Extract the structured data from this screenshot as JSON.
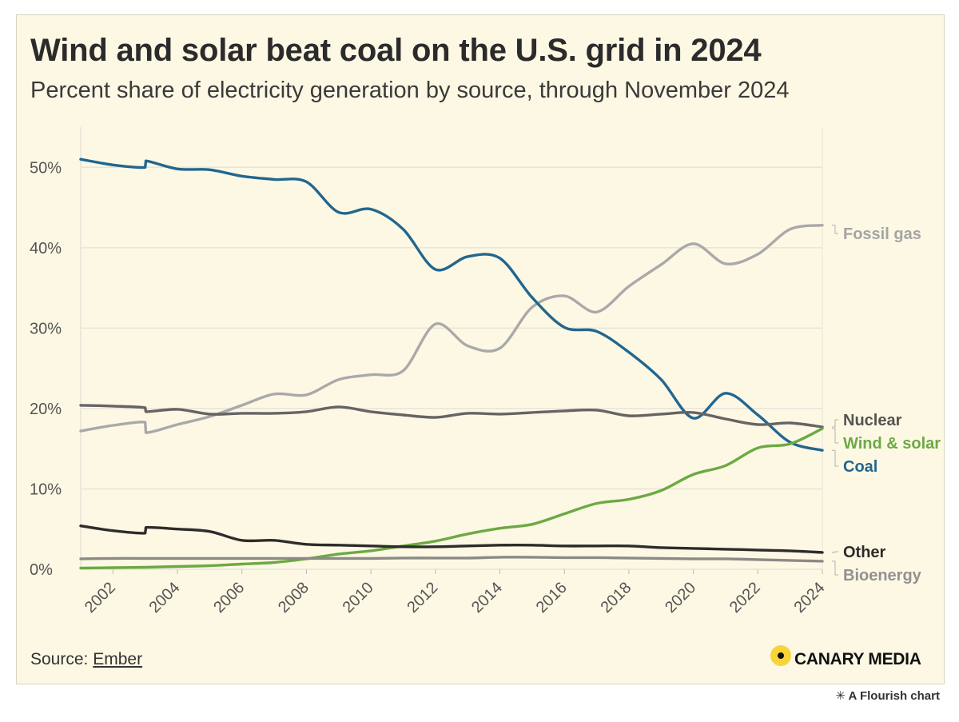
{
  "header": {
    "title": "Wind and solar beat coal on the U.S. grid in 2024",
    "subtitle": "Percent share of electricity generation by source, through November 2024"
  },
  "footer": {
    "source_prefix": "Source: ",
    "source_link": "Ember",
    "brand": "CANARY MEDIA",
    "flourish_icon": "✳",
    "flourish": "A Flourish chart"
  },
  "colors": {
    "background": "#fcf8e4",
    "grid": "#e7e4d9",
    "axis_text": "#555555"
  },
  "chart_data": {
    "type": "line",
    "title": "Wind and solar beat coal on the U.S. grid in 2024",
    "subtitle": "Percent share of electricity generation by source, through November 2024",
    "xlabel": "",
    "ylabel": "",
    "x_range": [
      2001,
      2024
    ],
    "ylim": [
      0,
      55
    ],
    "y_ticks": [
      0,
      10,
      20,
      30,
      40,
      50
    ],
    "y_tick_labels": [
      "0%",
      "10%",
      "20%",
      "30%",
      "40%",
      "50%"
    ],
    "x_ticks": [
      2002,
      2004,
      2006,
      2008,
      2010,
      2012,
      2014,
      2016,
      2018,
      2020,
      2022,
      2024
    ],
    "x_tick_labels": [
      "2002",
      "2004",
      "2006",
      "2008",
      "2010",
      "2012",
      "2014",
      "2016",
      "2018",
      "2020",
      "2022",
      "2024"
    ],
    "grid": true,
    "legend": "direct labels at right end of lines",
    "x": [
      2001,
      2002,
      2003,
      2003.02,
      2004,
      2005,
      2006,
      2007,
      2008,
      2009,
      2010,
      2011,
      2012,
      2013,
      2014,
      2015,
      2016,
      2017,
      2018,
      2019,
      2020,
      2021,
      2022,
      2023,
      2024
    ],
    "series": [
      {
        "name": "Fossil gas",
        "label": "Fossil gas",
        "color": "#a9a9a9",
        "values": [
          17.2,
          17.9,
          18.3,
          17.0,
          18.0,
          19.0,
          20.4,
          21.8,
          21.7,
          23.6,
          24.2,
          24.7,
          30.5,
          27.8,
          27.5,
          32.6,
          34.0,
          32.0,
          35.2,
          37.9,
          40.5,
          38.0,
          39.2,
          42.3,
          42.8
        ]
      },
      {
        "name": "Coal",
        "label": "Coal",
        "color": "#22668f",
        "values": [
          51.0,
          50.3,
          50.0,
          50.8,
          49.8,
          49.7,
          48.9,
          48.5,
          48.2,
          44.4,
          44.8,
          42.3,
          37.3,
          38.9,
          38.7,
          33.8,
          30.1,
          29.6,
          27.0,
          23.6,
          18.8,
          21.9,
          19.2,
          15.8,
          14.8
        ]
      },
      {
        "name": "Nuclear",
        "label": "Nuclear",
        "color": "#666463",
        "values": [
          20.4,
          20.3,
          20.1,
          19.6,
          19.9,
          19.3,
          19.4,
          19.4,
          19.6,
          20.2,
          19.6,
          19.2,
          18.9,
          19.4,
          19.3,
          19.5,
          19.7,
          19.8,
          19.1,
          19.3,
          19.5,
          18.7,
          18.0,
          18.2,
          17.7
        ]
      },
      {
        "name": "Wind & solar",
        "label": "Wind & solar",
        "color": "#6ca944",
        "values": [
          0.15,
          0.2,
          0.25,
          0.25,
          0.35,
          0.45,
          0.65,
          0.85,
          1.3,
          1.9,
          2.3,
          2.9,
          3.5,
          4.4,
          5.1,
          5.6,
          6.9,
          8.2,
          8.7,
          9.8,
          11.8,
          12.9,
          15.1,
          15.6,
          17.5
        ]
      },
      {
        "name": "Other",
        "label": "Other",
        "color": "#2d2c2a",
        "values": [
          5.4,
          4.8,
          4.5,
          5.2,
          5.0,
          4.7,
          3.6,
          3.6,
          3.1,
          3.0,
          2.9,
          2.8,
          2.8,
          2.9,
          3.0,
          3.0,
          2.9,
          2.9,
          2.9,
          2.7,
          2.6,
          2.5,
          2.4,
          2.3,
          2.1
        ]
      },
      {
        "name": "Bioenergy",
        "label": "Bioenergy",
        "color": "#8c8a87",
        "values": [
          1.3,
          1.35,
          1.35,
          1.35,
          1.35,
          1.35,
          1.35,
          1.35,
          1.35,
          1.35,
          1.35,
          1.4,
          1.4,
          1.4,
          1.5,
          1.5,
          1.45,
          1.45,
          1.4,
          1.35,
          1.3,
          1.3,
          1.2,
          1.1,
          1.0
        ]
      }
    ]
  }
}
